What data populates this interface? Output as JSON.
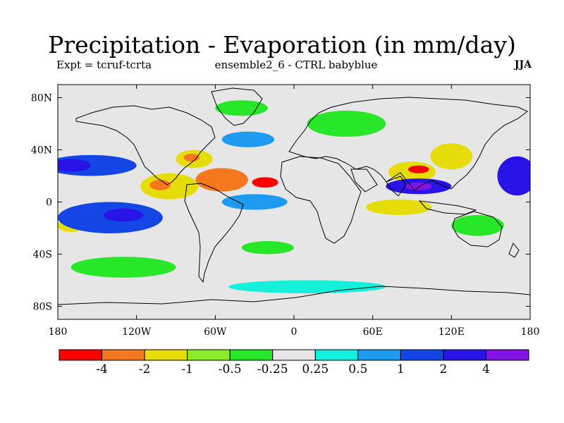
{
  "header": {
    "title": "Precipitation - Evaporation (in mm/day)",
    "expt": "Expt = tcruf-tcrta",
    "ensemble": "ensemble2_6 - CTRL babyblue",
    "season": "JJA"
  },
  "chart_data": {
    "type": "heatmap",
    "title": "Precipitation - Evaporation (in mm/day)",
    "projection": "cylindrical-equidistant",
    "xlim": [
      -180,
      180
    ],
    "ylim": [
      -90,
      90
    ],
    "x_ticks": [
      {
        "value": -180,
        "label": "180"
      },
      {
        "value": -120,
        "label": "120W"
      },
      {
        "value": -60,
        "label": "60W"
      },
      {
        "value": 0,
        "label": "0"
      },
      {
        "value": 60,
        "label": "60E"
      },
      {
        "value": 120,
        "label": "120E"
      },
      {
        "value": 180,
        "label": "180"
      }
    ],
    "y_ticks": [
      {
        "value": 80,
        "label": "80N"
      },
      {
        "value": 40,
        "label": "40N"
      },
      {
        "value": 0,
        "label": "0"
      },
      {
        "value": -40,
        "label": "40S"
      },
      {
        "value": -80,
        "label": "80S"
      }
    ],
    "colorbar": {
      "colors": [
        "#ff0000",
        "#f5781e",
        "#e6dc0a",
        "#8ceb28",
        "#28e628",
        "#e6e6e6",
        "#14f0dc",
        "#1e9bf0",
        "#1446e6",
        "#2814e6",
        "#8214e6"
      ],
      "levels": [
        -4,
        -2,
        -1,
        -0.5,
        -0.25,
        0.25,
        0.5,
        1,
        2,
        4
      ],
      "labels": [
        "-4",
        "-2",
        "-1",
        "-0.5",
        "-0.25",
        "0.25",
        "0.5",
        "1",
        "2",
        "4"
      ]
    },
    "regions": [
      {
        "name": "north-atlantic-subtropical-dry",
        "lon": -55,
        "lat": 17,
        "rx": 20,
        "ry": 9,
        "value": -3
      },
      {
        "name": "north-atlantic-subtropical-core",
        "lon": -22,
        "lat": 15,
        "rx": 10,
        "ry": 4,
        "value": -5
      },
      {
        "name": "mexico-caribbean-dry",
        "lon": -95,
        "lat": 12,
        "rx": 22,
        "ry": 10,
        "value": -1.5
      },
      {
        "name": "mexico-caribbean-core",
        "lon": -102,
        "lat": 13,
        "rx": 8,
        "ry": 4,
        "value": -4
      },
      {
        "name": "us-southeast-dry",
        "lon": -76,
        "lat": 33,
        "rx": 14,
        "ry": 7,
        "value": -1.5
      },
      {
        "name": "us-southeast-core",
        "lon": -78,
        "lat": 34,
        "rx": 6,
        "ry": 3,
        "value": -3
      },
      {
        "name": "south-asia-dry",
        "lon": 90,
        "lat": 23,
        "rx": 18,
        "ry": 8,
        "value": -1.5
      },
      {
        "name": "south-asia-core",
        "lon": 95,
        "lat": 25,
        "rx": 8,
        "ry": 3,
        "value": -5
      },
      {
        "name": "east-asia-dry",
        "lon": 120,
        "lat": 35,
        "rx": 16,
        "ry": 10,
        "value": -1.5
      },
      {
        "name": "indian-ocean-dry",
        "lon": 80,
        "lat": -4,
        "rx": 25,
        "ry": 6,
        "value": -1.5
      },
      {
        "name": "west-pacific-dry",
        "lon": 140,
        "lat": -18,
        "rx": 20,
        "ry": 8,
        "value": -0.5
      },
      {
        "name": "south-pacific-east-dry",
        "lon": -170,
        "lat": -18,
        "rx": 10,
        "ry": 5,
        "value": -2
      },
      {
        "name": "north-pacific-wet",
        "lon": -155,
        "lat": 28,
        "rx": 35,
        "ry": 8,
        "value": 1.5
      },
      {
        "name": "north-pacific-wet-core",
        "lon": -170,
        "lat": 28,
        "rx": 15,
        "ry": 5,
        "value": 3
      },
      {
        "name": "east-pacific-south-wet",
        "lon": -140,
        "lat": -12,
        "rx": 40,
        "ry": 12,
        "value": 1
      },
      {
        "name": "east-pacific-south-core",
        "lon": -130,
        "lat": -10,
        "rx": 15,
        "ry": 5,
        "value": 3
      },
      {
        "name": "indian-ocean-north-wet",
        "lon": 95,
        "lat": 12,
        "rx": 25,
        "ry": 6,
        "value": 3
      },
      {
        "name": "indian-ocean-north-core",
        "lon": 95,
        "lat": 12,
        "rx": 10,
        "ry": 3,
        "value": 5
      },
      {
        "name": "west-pacific-wet",
        "lon": 170,
        "lat": 20,
        "rx": 15,
        "ry": 15,
        "value": 3
      },
      {
        "name": "atlantic-tropical-wet",
        "lon": -30,
        "lat": 0,
        "rx": 25,
        "ry": 6,
        "value": 0.7
      },
      {
        "name": "southern-ocean-wet",
        "lon": 10,
        "lat": -65,
        "rx": 60,
        "ry": 5,
        "value": 0.4
      },
      {
        "name": "north-atlantic-wet",
        "lon": -35,
        "lat": 48,
        "rx": 20,
        "ry": 6,
        "value": 0.7
      },
      {
        "name": "arctic-dry",
        "lon": -40,
        "lat": 72,
        "rx": 20,
        "ry": 6,
        "value": -0.35
      },
      {
        "name": "eurasia-dry",
        "lon": 40,
        "lat": 60,
        "rx": 30,
        "ry": 10,
        "value": -0.35
      },
      {
        "name": "south-atlantic-dry",
        "lon": -20,
        "lat": -35,
        "rx": 20,
        "ry": 5,
        "value": -0.35
      },
      {
        "name": "south-pacific-dry",
        "lon": -130,
        "lat": -50,
        "rx": 40,
        "ry": 8,
        "value": -0.35
      }
    ]
  }
}
